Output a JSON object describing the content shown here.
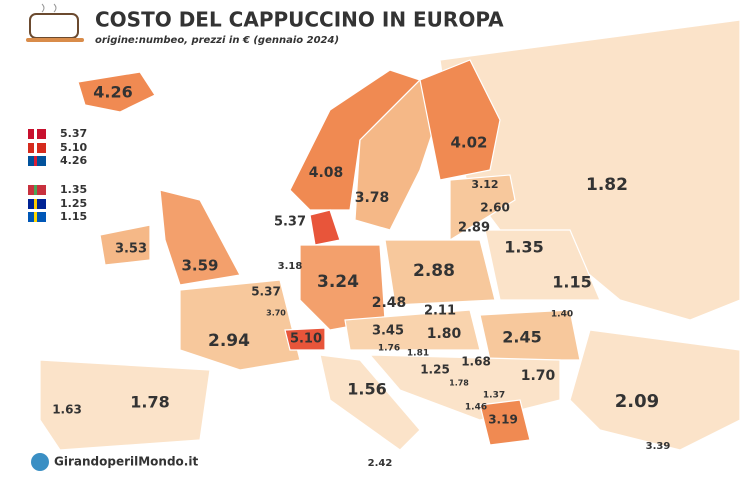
{
  "header": {
    "title": "COSTO DEL CAPPUCCINO IN EUROPA",
    "subtitle": "origine:numbeo, prezzi in € (gennaio 2024)"
  },
  "map_labels": [
    "4.26",
    "4.08",
    "4.02",
    "3.78",
    "3.12",
    "2.60",
    "2.89",
    "1.82",
    "5.37",
    "3.53",
    "3.59",
    "3.18",
    "3.24",
    "2.88",
    "1.35",
    "1.15",
    "5.37",
    "3.70",
    "2.48",
    "2.11",
    "1.40",
    "2.94",
    "5.10",
    "3.45",
    "1.80",
    "2.45",
    "1.76",
    "1.81",
    "1.68",
    "1.25",
    "1.78",
    "1.37",
    "1.70",
    "1.63",
    "1.78",
    "1.56",
    "2.09",
    "1.46",
    "3.19",
    "3.39",
    "2.42"
  ],
  "legend": [
    "5.37",
    "5.10",
    "4.26",
    "1.35",
    "1.25",
    "1.15"
  ],
  "footer": {
    "brand": "GirandoperilMondo.it"
  }
}
